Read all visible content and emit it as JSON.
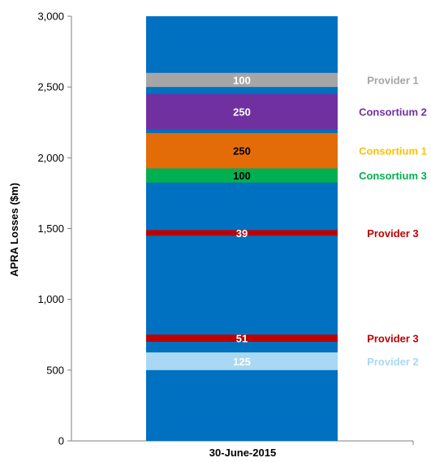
{
  "chart_data": {
    "type": "bar",
    "stacked": true,
    "title": "",
    "xlabel": "",
    "ylabel": "APRA Losses ($m)",
    "ylim": [
      0,
      3000
    ],
    "yticks": [
      0,
      500,
      1000,
      1500,
      2000,
      2500,
      3000
    ],
    "ytick_labels": [
      "0",
      "500",
      "1,000",
      "1,500",
      "2,000",
      "2,500",
      "3,000"
    ],
    "categories": [
      "30-June-2015"
    ],
    "background_color": "#0070c0",
    "grid": false,
    "segments": [
      {
        "start": 500,
        "value": 125,
        "value_label": "125",
        "name": "Provider 2",
        "color": "#a9d8f2",
        "label_color": "#ffffff",
        "name_color": "#a9d8f2"
      },
      {
        "start": 700,
        "value": 51,
        "value_label": "51",
        "name": "Provider 3",
        "color": "#c00000",
        "label_color": "#ffffff",
        "name_color": "#c00000",
        "thin": true
      },
      {
        "start": 1450,
        "value": 39,
        "value_label": "39",
        "name": "Provider 3",
        "color": "#c00000",
        "label_color": "#ffffff",
        "name_color": "#c00000",
        "thin": true
      },
      {
        "start": 1825,
        "value": 100,
        "value_label": "100",
        "name": "Consortium 3",
        "color": "#00b050",
        "label_color": "#000000",
        "name_color": "#00b050"
      },
      {
        "start": 1925,
        "value": 250,
        "value_label": "250",
        "name": "Consortium 1",
        "color": "#e36c09",
        "label_color": "#000000",
        "name_color": "#ffc000"
      },
      {
        "start": 2200,
        "value": 250,
        "value_label": "250",
        "name": "Consortium 2",
        "color": "#7030a0",
        "label_color": "#ffffff",
        "name_color": "#7030a0"
      },
      {
        "start": 2500,
        "value": 100,
        "value_label": "100",
        "name": "Provider 1",
        "color": "#a6a6a6",
        "label_color": "#ffffff",
        "name_color": "#a6a6a6"
      }
    ]
  }
}
